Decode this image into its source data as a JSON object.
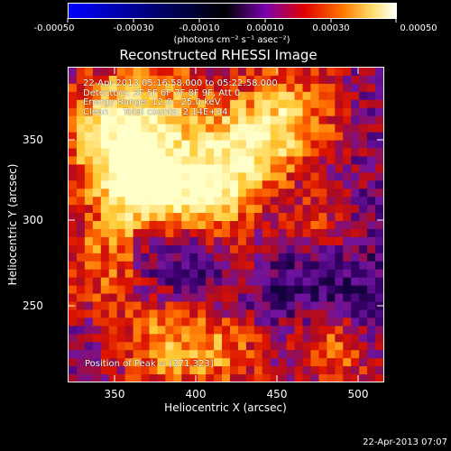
{
  "colorbar": {
    "tick_labels": [
      "-0.00050",
      "-0.00030",
      "-0.00010",
      "0.00010",
      "0.00030",
      "0.00050"
    ],
    "units_text": "(photons cm⁻² s⁻¹ asec⁻²)",
    "colors": [
      "#0000ff",
      "#000000",
      "#8a00c8",
      "#ff0000",
      "#ff8c00",
      "#ffffd0",
      "#ffffff"
    ]
  },
  "title": "Reconstructed RHESSI Image",
  "annotation": {
    "line1": "22-Apr-2013 05:16:58.000 to 05:22:58.000",
    "line2": "Detectors: 3F 5F 6F 7F 8F 9F, Att 0",
    "line3": "Energy Range: 12.0 - 25.0 keV",
    "line4": "Clean     Total counts: 2.14E+04"
  },
  "peak_text": "Position of Peak = [371,323]",
  "axes": {
    "x_label": "Heliocentric X (arcsec)",
    "y_label": "Heliocentric Y (arcsec)",
    "x_ticks": [
      "350",
      "400",
      "450",
      "500"
    ],
    "y_ticks": [
      "350",
      "300",
      "250"
    ]
  },
  "timestamp": "22-Apr-2013 07:07"
}
